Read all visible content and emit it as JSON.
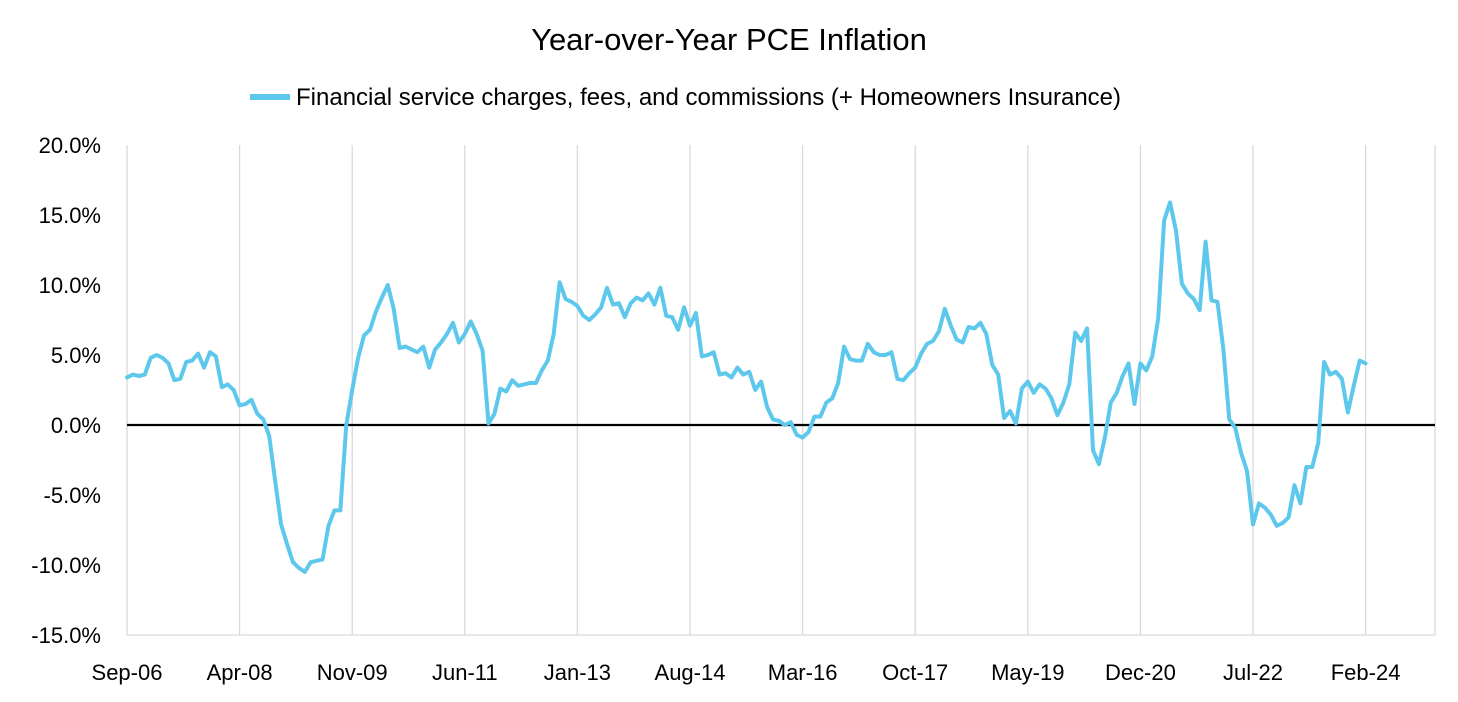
{
  "chart_data": {
    "type": "line",
    "title": "Year-over-Year PCE Inflation",
    "xlabel": "",
    "ylabel": "",
    "ylim": [
      -0.15,
      0.2
    ],
    "y_ticks": [
      0.2,
      0.15,
      0.1,
      0.05,
      0.0,
      -0.05,
      -0.1,
      -0.15
    ],
    "y_tick_labels": [
      "20.0%",
      "15.0%",
      "10.0%",
      "5.0%",
      "0.0%",
      "-5.0%",
      "-10.0%",
      "-15.0%"
    ],
    "x_tick_labels": [
      "Sep-06",
      "Apr-08",
      "Nov-09",
      "Jun-11",
      "Jan-13",
      "Aug-14",
      "Mar-16",
      "Oct-17",
      "May-19",
      "Dec-20",
      "Jul-22",
      "Feb-24"
    ],
    "x_start": "2006-09",
    "grid": "vertical",
    "legend_position": "top-center",
    "colors": {
      "series": "#5ec8ec",
      "grid": "#d9d9d9",
      "zero_line": "#000000"
    },
    "series": [
      {
        "name": "Financial service charges, fees, and commissions (+ Homeowners Insurance)",
        "values": [
          0.034,
          0.036,
          0.035,
          0.036,
          0.048,
          0.05,
          0.048,
          0.044,
          0.032,
          0.033,
          0.045,
          0.046,
          0.051,
          0.041,
          0.052,
          0.049,
          0.027,
          0.029,
          0.025,
          0.014,
          0.015,
          0.018,
          0.008,
          0.004,
          -0.008,
          -0.04,
          -0.071,
          -0.085,
          -0.098,
          -0.102,
          -0.105,
          -0.098,
          -0.097,
          -0.096,
          -0.072,
          -0.061,
          -0.061,
          0.0,
          0.025,
          0.048,
          0.064,
          0.068,
          0.081,
          0.091,
          0.1,
          0.083,
          0.055,
          0.056,
          0.054,
          0.052,
          0.056,
          0.041,
          0.054,
          0.059,
          0.065,
          0.073,
          0.059,
          0.065,
          0.074,
          0.065,
          0.053,
          0.001,
          0.008,
          0.026,
          0.024,
          0.032,
          0.028,
          0.029,
          0.03,
          0.03,
          0.039,
          0.046,
          0.065,
          0.102,
          0.09,
          0.088,
          0.085,
          0.078,
          0.075,
          0.079,
          0.084,
          0.098,
          0.086,
          0.087,
          0.077,
          0.087,
          0.091,
          0.089,
          0.094,
          0.086,
          0.098,
          0.078,
          0.077,
          0.068,
          0.084,
          0.071,
          0.08,
          0.049,
          0.05,
          0.052,
          0.036,
          0.037,
          0.034,
          0.041,
          0.036,
          0.038,
          0.025,
          0.031,
          0.013,
          0.004,
          0.003,
          0.0,
          0.002,
          -0.007,
          -0.009,
          -0.005,
          0.006,
          0.006,
          0.016,
          0.019,
          0.03,
          0.056,
          0.047,
          0.046,
          0.046,
          0.058,
          0.052,
          0.05,
          0.05,
          0.052,
          0.033,
          0.032,
          0.037,
          0.041,
          0.051,
          0.058,
          0.06,
          0.067,
          0.083,
          0.071,
          0.061,
          0.059,
          0.07,
          0.069,
          0.073,
          0.065,
          0.043,
          0.036,
          0.005,
          0.01,
          0.001,
          0.026,
          0.031,
          0.023,
          0.029,
          0.026,
          0.019,
          0.007,
          0.016,
          0.029,
          0.066,
          0.06,
          0.069,
          -0.018,
          -0.028,
          -0.009,
          0.016,
          0.023,
          0.035,
          0.044,
          0.015,
          0.044,
          0.039,
          0.049,
          0.076,
          0.146,
          0.159,
          0.139,
          0.101,
          0.094,
          0.09,
          0.082,
          0.131,
          0.089,
          0.088,
          0.054,
          0.004,
          -0.002,
          -0.02,
          -0.033,
          -0.071,
          -0.056,
          -0.059,
          -0.064,
          -0.072,
          -0.07,
          -0.066,
          -0.043,
          -0.056,
          -0.03,
          -0.03,
          -0.013,
          0.045,
          0.036,
          0.038,
          0.033,
          0.009,
          0.028,
          0.046,
          0.044
        ]
      }
    ]
  }
}
